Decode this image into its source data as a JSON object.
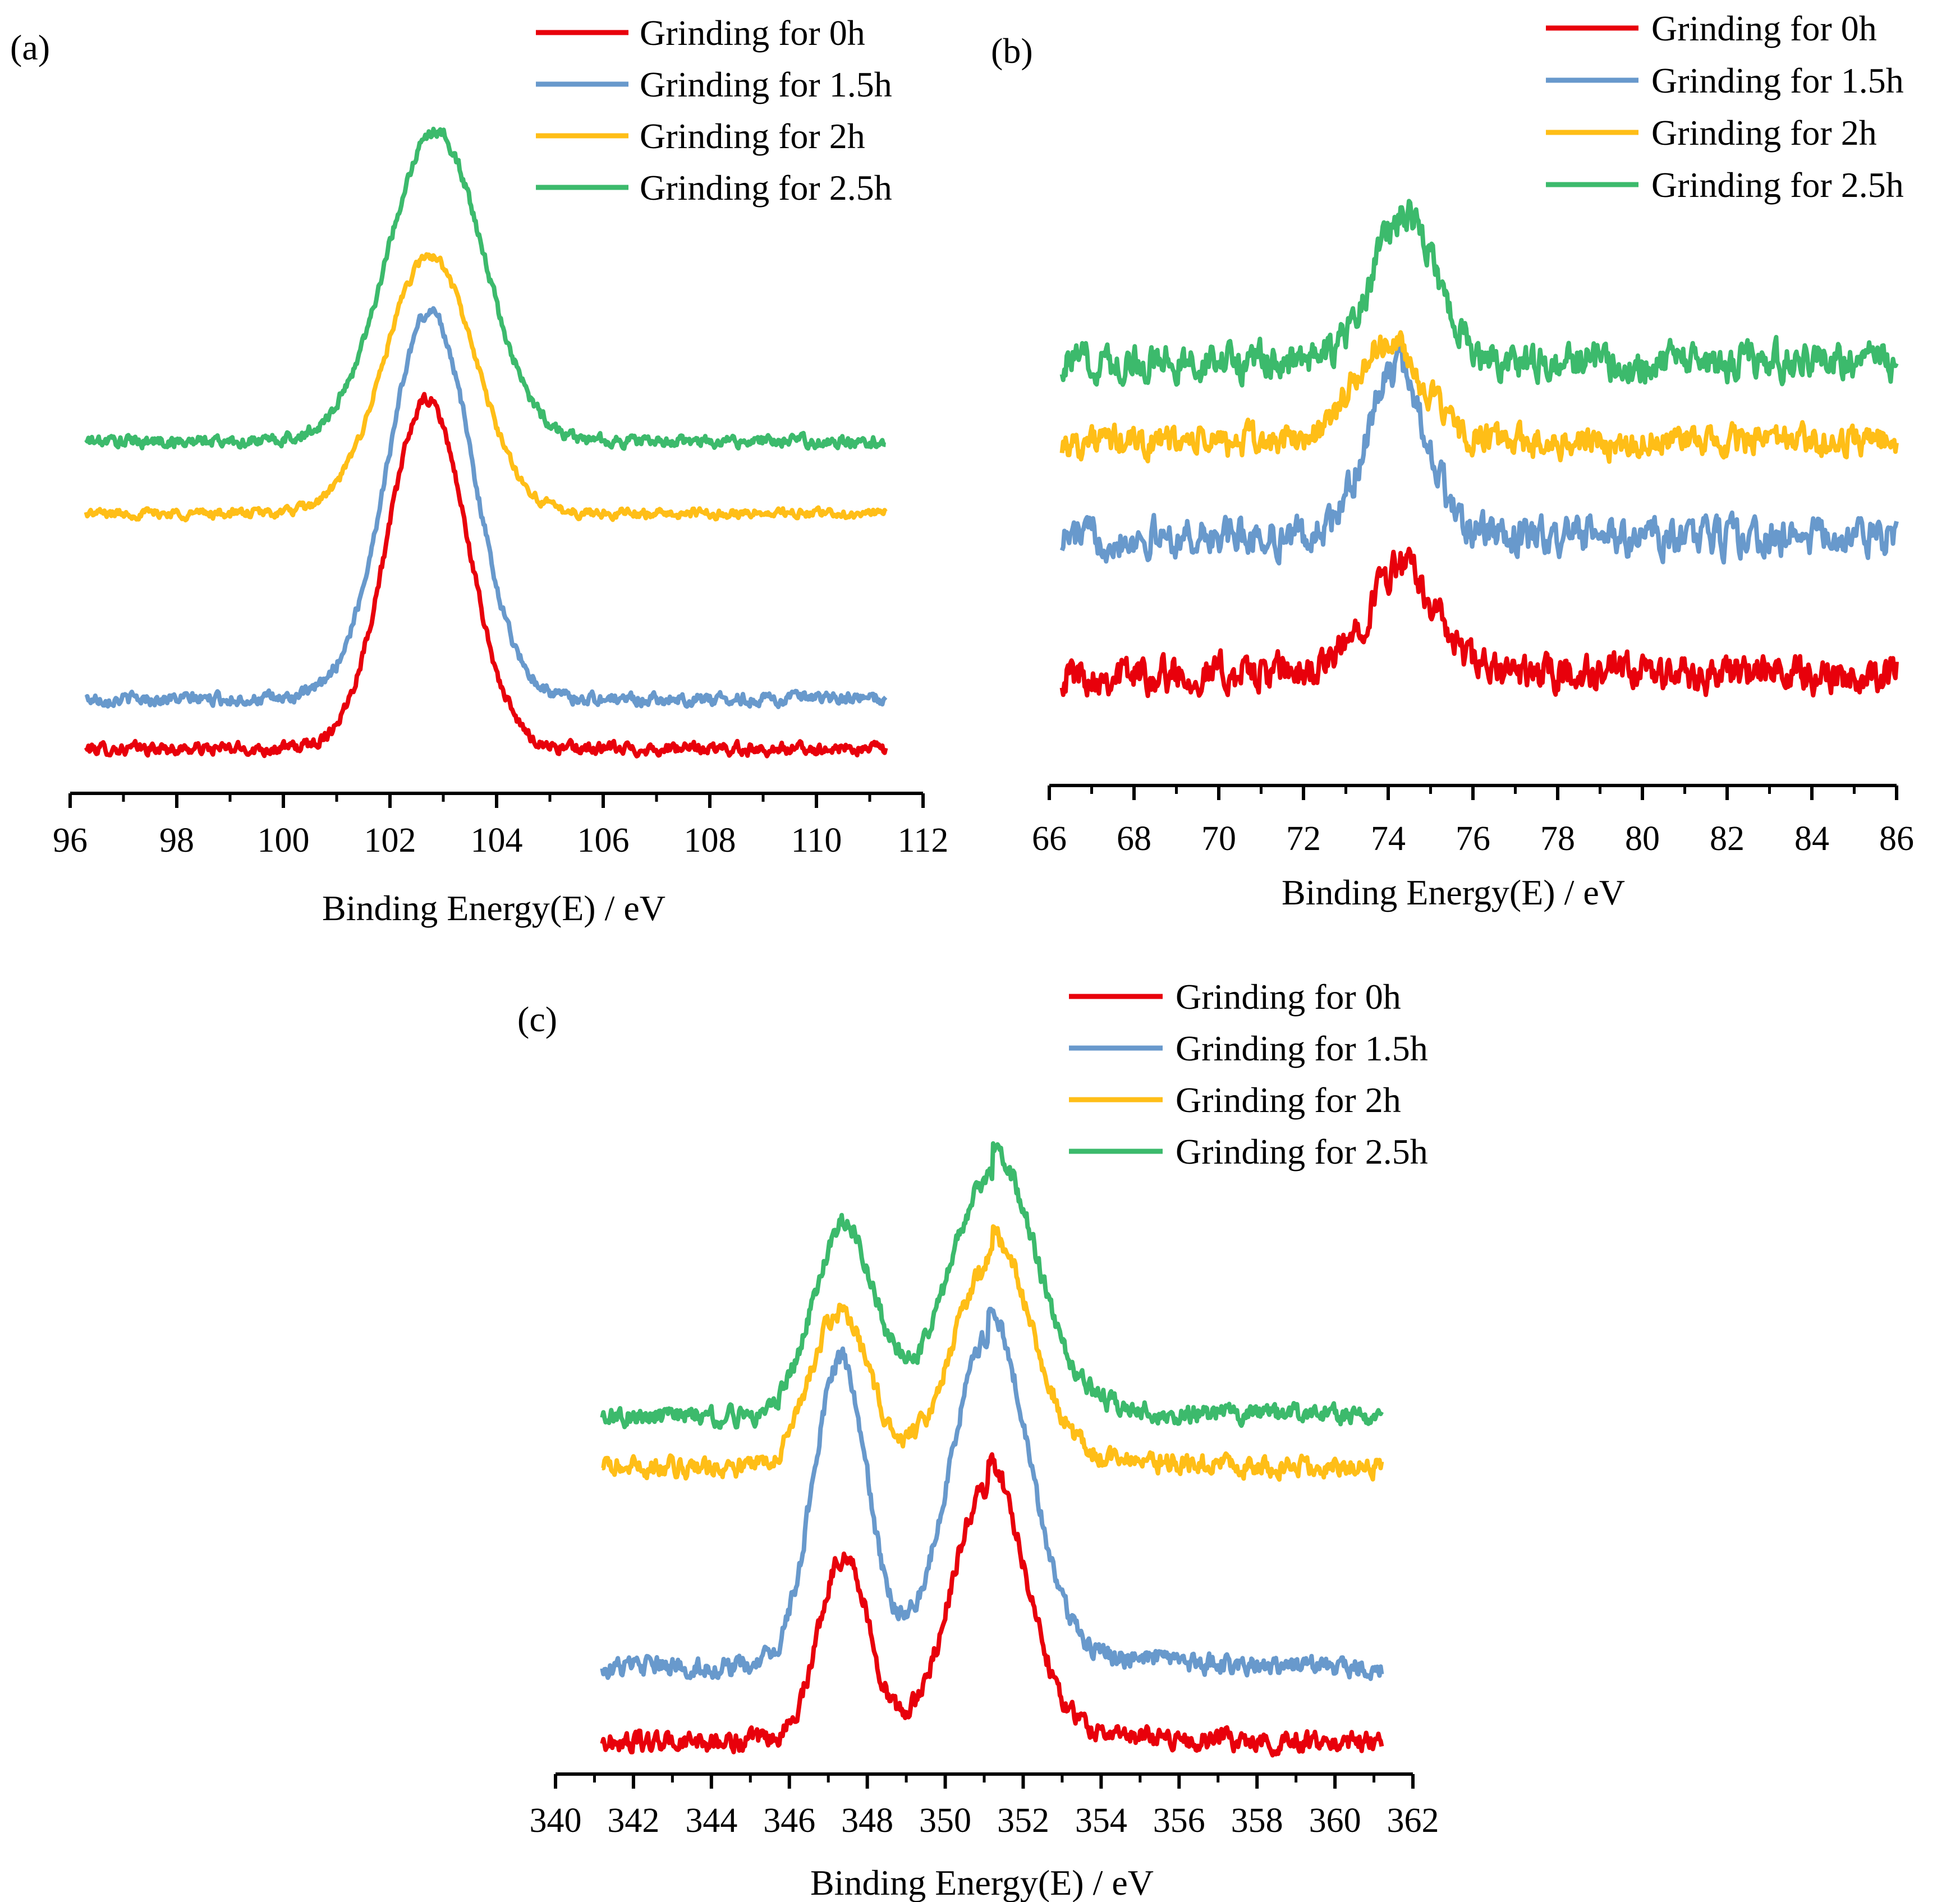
{
  "colors": {
    "grinding_0h": "#e8000b",
    "grinding_1_5h": "#6899cc",
    "grinding_2h": "#ffbe17",
    "grinding_2_5h": "#3cba6c",
    "axis": "#000000"
  },
  "chart_data": [
    {
      "panel": "(a)",
      "type": "line",
      "xlabel": "Binding Energy(E) / eV",
      "ylabel": "",
      "xlim": [
        96,
        112
      ],
      "xticks": [
        "96",
        "98",
        "100",
        "102",
        "104",
        "106",
        "108",
        "110",
        "112"
      ],
      "x_range": [
        96.3,
        111.3
      ],
      "legend": [
        "Grinding for 0h",
        "Grinding for 1.5h",
        "Grinding for 2h",
        "Grinding for 2.5h"
      ],
      "series": [
        {
          "name": "Grinding for 0h",
          "baseline": 1.0,
          "peaks": [
            {
              "center": 102.7,
              "sigma": 0.75,
              "amp": 12.6
            }
          ],
          "noise": 0.25
        },
        {
          "name": "Grinding for 1.5h",
          "baseline": 2.8,
          "peaks": [
            {
              "center": 102.75,
              "sigma": 0.8,
              "amp": 14.0
            }
          ],
          "noise": 0.25
        },
        {
          "name": "Grinding for 2h",
          "baseline": 9.5,
          "peaks": [
            {
              "center": 102.75,
              "sigma": 0.85,
              "amp": 9.3
            }
          ],
          "noise": 0.2
        },
        {
          "name": "Grinding for 2.5h",
          "baseline": 12.1,
          "peaks": [
            {
              "center": 102.85,
              "sigma": 0.9,
              "amp": 11.2
            }
          ],
          "noise": 0.25
        }
      ]
    },
    {
      "panel": "(b)",
      "type": "line",
      "xlabel": "Binding Energy(E) / eV",
      "ylabel": "",
      "xlim": [
        66,
        86
      ],
      "xticks": [
        "66",
        "68",
        "70",
        "72",
        "74",
        "76",
        "78",
        "80",
        "82",
        "84",
        "86"
      ],
      "x_range": [
        66.3,
        86.0
      ],
      "legend": [
        "Grinding for 0h",
        "Grinding for 1.5h",
        "Grinding for 2h",
        "Grinding for 2.5h"
      ],
      "series": [
        {
          "name": "Grinding for 0h",
          "baseline": 3.0,
          "peaks": [
            {
              "center": 74.3,
              "sigma": 0.8,
              "amp": 3.6
            }
          ],
          "noise": 0.7
        },
        {
          "name": "Grinding for 1.5h",
          "baseline": 7.6,
          "peaks": [
            {
              "center": 74.2,
              "sigma": 0.7,
              "amp": 5.7
            }
          ],
          "noise": 0.7
        },
        {
          "name": "Grinding for 2h",
          "baseline": 10.8,
          "peaks": [
            {
              "center": 74.0,
              "sigma": 0.8,
              "amp": 3.3
            }
          ],
          "noise": 0.6
        },
        {
          "name": "Grinding for 2.5h",
          "baseline": 13.5,
          "peaks": [
            {
              "center": 74.4,
              "sigma": 0.75,
              "amp": 5.0
            }
          ],
          "noise": 0.7
        }
      ]
    },
    {
      "panel": "(c)",
      "type": "line",
      "xlabel": "Binding Energy(E) / eV",
      "ylabel": "",
      "xlim": [
        340,
        362
      ],
      "xticks": [
        "340",
        "342",
        "344",
        "346",
        "348",
        "350",
        "352",
        "354",
        "356",
        "358",
        "360",
        "362"
      ],
      "x_range": [
        341.2,
        361.2
      ],
      "legend": [
        "Grinding for 0h",
        "Grinding for 1.5h",
        "Grinding for 2h",
        "Grinding for 2.5h"
      ],
      "series": [
        {
          "name": "Grinding for 0h",
          "baseline": 1.0,
          "peaks": [
            {
              "center": 347.4,
              "sigma": 0.65,
              "amp": 7.5
            },
            {
              "center": 351.1,
              "sigma": 0.95,
              "amp": 10.2
            }
          ],
          "tail": 1.0,
          "noise": 0.45
        },
        {
          "name": "Grinding for 1.5h",
          "baseline": 4.0,
          "peaks": [
            {
              "center": 347.3,
              "sigma": 0.7,
              "amp": 12.3
            },
            {
              "center": 351.1,
              "sigma": 1.0,
              "amp": 13.1
            }
          ],
          "tail": 1.4,
          "noise": 0.45
        },
        {
          "name": "Grinding for 2h",
          "baseline": 12.0,
          "peaks": [
            {
              "center": 347.3,
              "sigma": 0.75,
              "amp": 6.2
            },
            {
              "center": 351.2,
              "sigma": 1.0,
              "amp": 8.3
            }
          ],
          "tail": 1.0,
          "noise": 0.45
        },
        {
          "name": "Grinding for 2.5h",
          "baseline": 14.0,
          "peaks": [
            {
              "center": 347.4,
              "sigma": 0.8,
              "amp": 7.7
            },
            {
              "center": 351.2,
              "sigma": 1.1,
              "amp": 9.6
            }
          ],
          "tail": 1.2,
          "noise": 0.45
        }
      ]
    }
  ]
}
